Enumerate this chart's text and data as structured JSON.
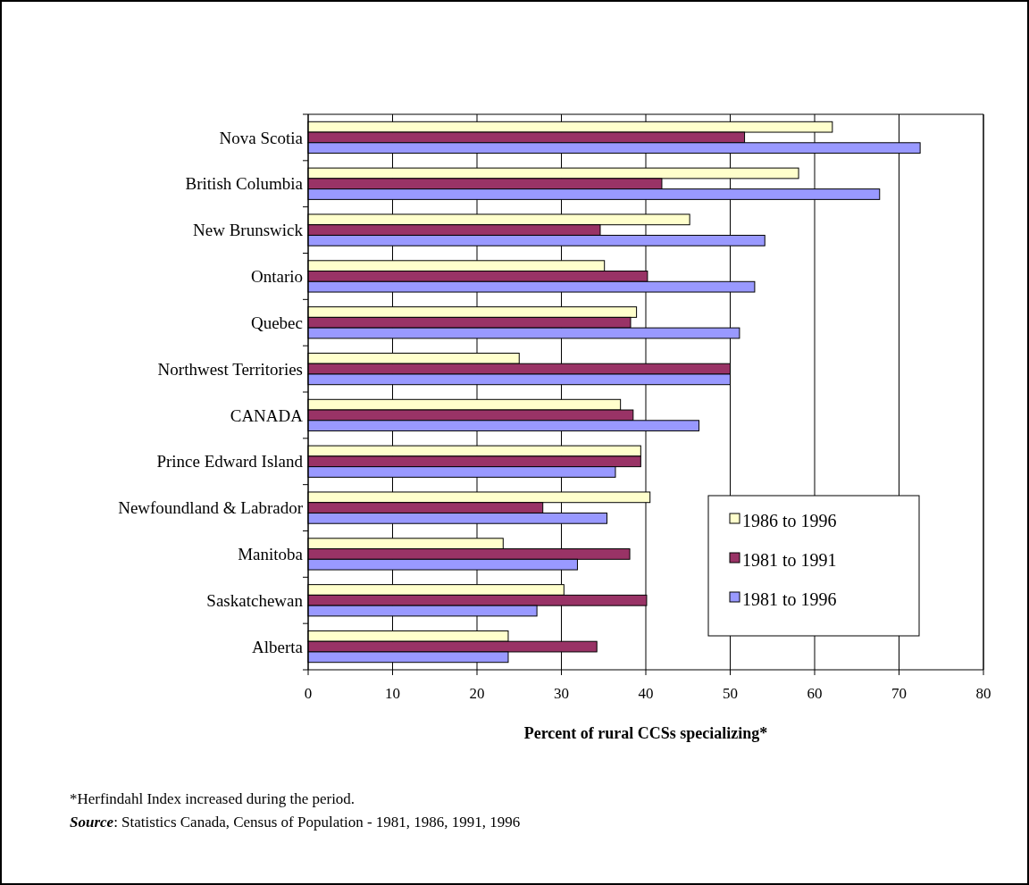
{
  "chart_data": {
    "type": "bar",
    "orientation": "horizontal",
    "xlabel": "Percent of rural CCSs specializing*",
    "categories": [
      "Nova Scotia",
      "British Columbia",
      "New Brunswick",
      "Ontario",
      "Quebec",
      "Northwest Territories",
      "CANADA",
      "Prince Edward Island",
      "Newfoundland & Labrador",
      "Manitoba",
      "Saskatchewan",
      "Alberta"
    ],
    "series": [
      {
        "name": "1986 to 1996",
        "color": "#ffffcc",
        "values": [
          62.1,
          58.1,
          45.2,
          35.1,
          38.9,
          25.0,
          37.0,
          39.4,
          40.5,
          23.1,
          30.3,
          23.7
        ]
      },
      {
        "name": "1981 to 1991",
        "color": "#993366",
        "values": [
          51.7,
          41.9,
          34.6,
          40.2,
          38.2,
          50.0,
          38.5,
          39.4,
          27.8,
          38.1,
          40.1,
          34.2
        ]
      },
      {
        "name": "1981 to 1996",
        "color": "#9999ff",
        "values": [
          72.5,
          67.7,
          54.1,
          52.9,
          51.1,
          50.0,
          46.3,
          36.4,
          35.4,
          31.9,
          27.1,
          23.7
        ]
      }
    ],
    "xlim": [
      0,
      80
    ],
    "xticks": [
      0,
      10,
      20,
      30,
      40,
      50,
      60,
      70,
      80
    ],
    "grid": "x",
    "legend": "right",
    "annotations": [
      "*Herfindahl Index increased during the period.",
      "Source: Statistics Canada, Census of Population - 1981, 1986, 1991, 1996"
    ]
  }
}
